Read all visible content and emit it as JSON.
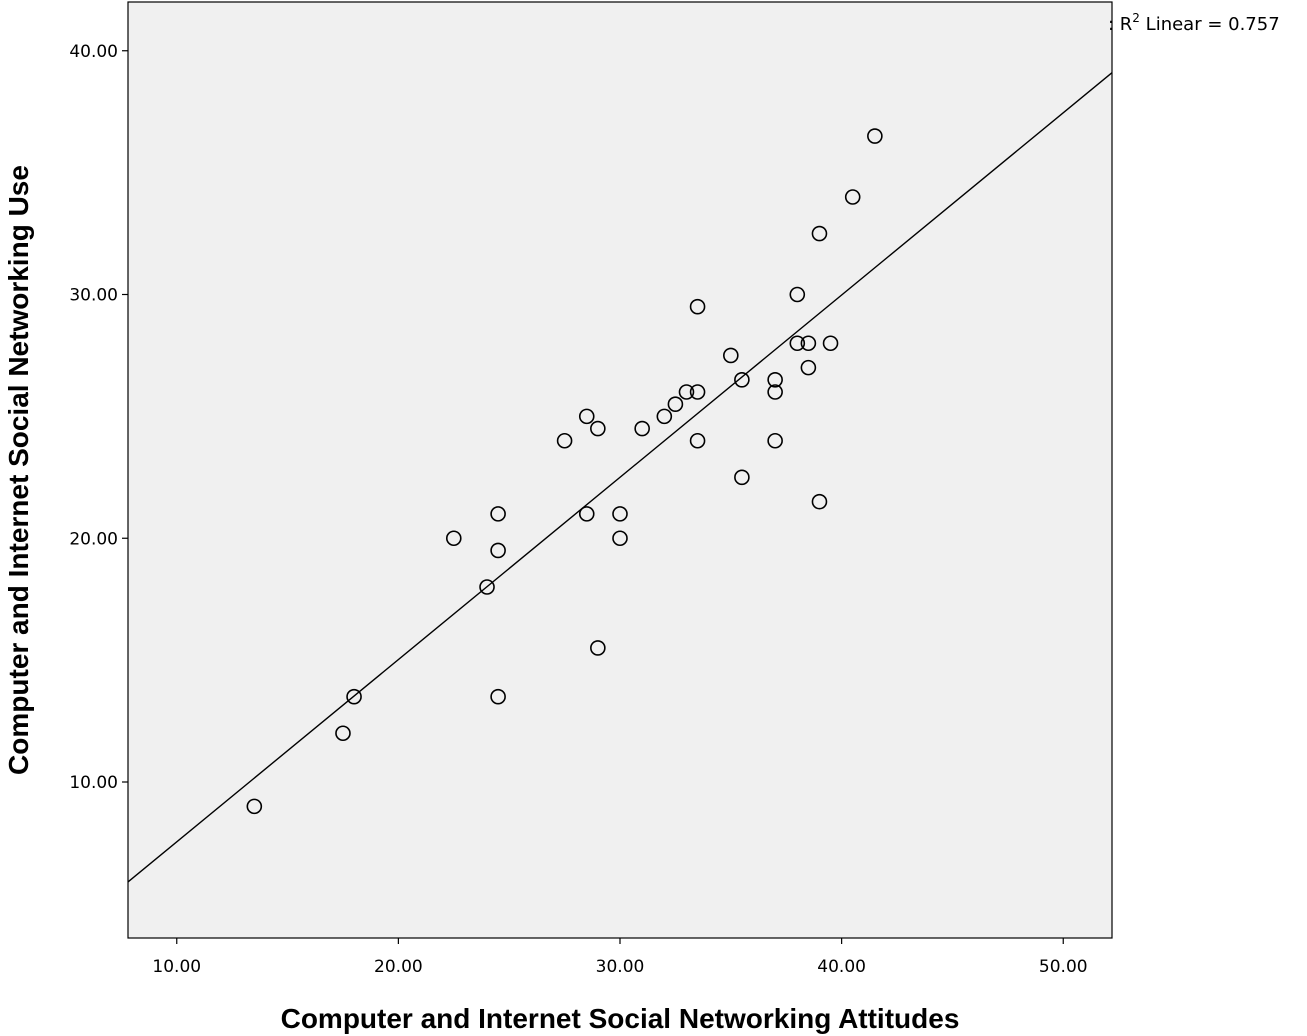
{
  "chart_data": {
    "type": "scatter",
    "title": "",
    "xlabel": "Computer and Internet Social Networking Attitudes",
    "ylabel": "Computer and Internet Social Networking Use",
    "xlim": [
      7.8,
      52.2
    ],
    "ylim": [
      3.6,
      42.0
    ],
    "xticks": [
      "10.00",
      "20.00",
      "30.00",
      "40.00",
      "50.00"
    ],
    "yticks": [
      "10.00",
      "20.00",
      "30.00",
      "40.00"
    ],
    "grid": false,
    "background_color": "#f0f0f0",
    "point_style": "hollow-circle",
    "points": [
      {
        "x": 13.5,
        "y": 9.0
      },
      {
        "x": 17.5,
        "y": 12.0
      },
      {
        "x": 18.0,
        "y": 13.5
      },
      {
        "x": 22.5,
        "y": 20.0
      },
      {
        "x": 24.0,
        "y": 18.0
      },
      {
        "x": 24.5,
        "y": 21.0
      },
      {
        "x": 24.5,
        "y": 19.5
      },
      {
        "x": 24.5,
        "y": 13.5
      },
      {
        "x": 27.5,
        "y": 24.0
      },
      {
        "x": 28.5,
        "y": 25.0
      },
      {
        "x": 28.5,
        "y": 21.0
      },
      {
        "x": 29.0,
        "y": 24.5
      },
      {
        "x": 29.0,
        "y": 15.5
      },
      {
        "x": 30.0,
        "y": 21.0
      },
      {
        "x": 30.0,
        "y": 20.0
      },
      {
        "x": 31.0,
        "y": 24.5
      },
      {
        "x": 32.0,
        "y": 25.0
      },
      {
        "x": 32.5,
        "y": 25.5
      },
      {
        "x": 33.0,
        "y": 26.0
      },
      {
        "x": 33.5,
        "y": 26.0
      },
      {
        "x": 33.5,
        "y": 24.0
      },
      {
        "x": 33.5,
        "y": 29.5
      },
      {
        "x": 35.0,
        "y": 27.5
      },
      {
        "x": 35.5,
        "y": 26.5
      },
      {
        "x": 35.5,
        "y": 22.5
      },
      {
        "x": 37.0,
        "y": 26.5
      },
      {
        "x": 37.0,
        "y": 26.0
      },
      {
        "x": 37.0,
        "y": 24.0
      },
      {
        "x": 38.0,
        "y": 30.0
      },
      {
        "x": 38.0,
        "y": 28.0
      },
      {
        "x": 38.5,
        "y": 28.0
      },
      {
        "x": 38.5,
        "y": 27.0
      },
      {
        "x": 39.0,
        "y": 32.5
      },
      {
        "x": 39.0,
        "y": 21.5
      },
      {
        "x": 39.5,
        "y": 28.0
      },
      {
        "x": 40.5,
        "y": 34.0
      },
      {
        "x": 41.5,
        "y": 36.5
      }
    ],
    "fit_line": {
      "x0": 7.8,
      "y0": 5.9,
      "x1": 52.2,
      "y1": 39.1
    },
    "annotations": {
      "r2_prefix": ": R",
      "r2_sup": "2",
      "r2_suffix": " Linear = 0.757"
    }
  }
}
